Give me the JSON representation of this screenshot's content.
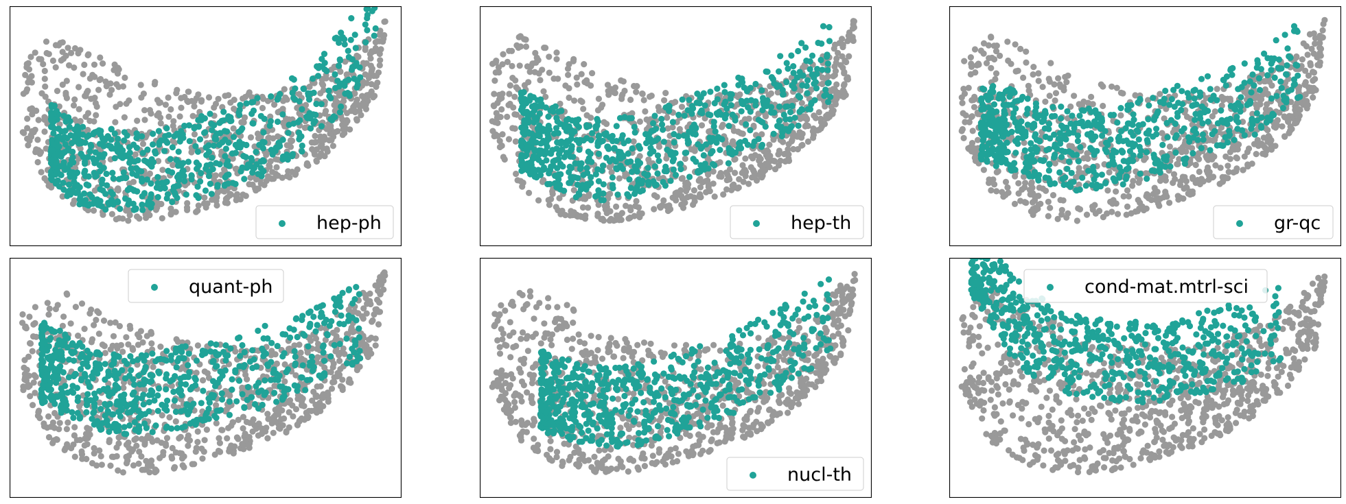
{
  "colors": {
    "background_points": "#999999",
    "highlight_points": "#20a398",
    "frame": "#000000",
    "legend_border": "#cccccc"
  },
  "chart_data": [
    {
      "type": "scatter",
      "title": "",
      "xlabel": "",
      "ylabel": "",
      "grid": false,
      "axes_ticks": false,
      "legend": {
        "entries": [
          "hep-ph"
        ],
        "placement": "lower-right"
      },
      "series": [
        {
          "name": "hep-ph",
          "color": "#20a398",
          "x": [
            -0.8,
            -0.7,
            -0.6,
            -0.5,
            -0.4,
            -0.3,
            -0.2,
            -0.1,
            0.0,
            0.1,
            0.2,
            0.3,
            0.4,
            0.5,
            0.6,
            0.7,
            0.8,
            0.88
          ],
          "y": [
            0.2,
            0.1,
            0.05,
            0.05,
            0.05,
            0.05,
            0.08,
            0.1,
            0.12,
            0.15,
            0.18,
            0.22,
            0.28,
            0.35,
            0.45,
            0.55,
            0.7,
            0.95
          ]
        }
      ]
    },
    {
      "type": "scatter",
      "title": "",
      "xlabel": "",
      "ylabel": "",
      "grid": false,
      "axes_ticks": false,
      "legend": {
        "entries": [
          "hep-th"
        ],
        "placement": "lower-right"
      },
      "series": [
        {
          "name": "hep-th",
          "color": "#20a398",
          "x": [
            -0.8,
            -0.7,
            -0.6,
            -0.5,
            -0.4,
            -0.3,
            -0.2,
            -0.1,
            0.0,
            0.2,
            0.4,
            0.6,
            0.8
          ],
          "y": [
            0.25,
            0.2,
            0.15,
            0.1,
            0.1,
            0.1,
            0.12,
            0.15,
            0.2,
            0.25,
            0.35,
            0.45,
            0.6
          ]
        }
      ]
    },
    {
      "type": "scatter",
      "title": "",
      "xlabel": "",
      "ylabel": "",
      "grid": false,
      "axes_ticks": false,
      "legend": {
        "entries": [
          "gr-qc"
        ],
        "placement": "lower-right"
      },
      "series": [
        {
          "name": "gr-qc",
          "color": "#20a398",
          "x": [
            -0.85,
            -0.7,
            -0.55,
            -0.4,
            -0.25,
            -0.1,
            0.05,
            0.2,
            0.4,
            0.6,
            0.8
          ],
          "y": [
            0.3,
            0.25,
            0.2,
            0.15,
            0.15,
            0.18,
            0.22,
            0.28,
            0.35,
            0.45,
            0.6
          ]
        }
      ]
    },
    {
      "type": "scatter",
      "title": "",
      "xlabel": "",
      "ylabel": "",
      "grid": false,
      "axes_ticks": false,
      "legend": {
        "entries": [
          "quant-ph"
        ],
        "placement": "upper-center"
      },
      "series": [
        {
          "name": "quant-ph",
          "color": "#20a398",
          "x": [
            -0.85,
            -0.75,
            -0.65,
            -0.55,
            -0.45,
            -0.35,
            -0.2,
            0.0,
            0.2,
            0.4,
            0.6,
            0.8
          ],
          "y": [
            0.35,
            0.3,
            0.25,
            0.2,
            0.18,
            0.18,
            0.2,
            0.25,
            0.3,
            0.35,
            0.45,
            0.55
          ]
        }
      ]
    },
    {
      "type": "scatter",
      "title": "",
      "xlabel": "",
      "ylabel": "",
      "grid": false,
      "axes_ticks": false,
      "legend": {
        "entries": [
          "nucl-th"
        ],
        "placement": "lower-right"
      },
      "series": [
        {
          "name": "nucl-th",
          "color": "#20a398",
          "x": [
            -0.7,
            -0.55,
            -0.4,
            -0.25,
            -0.1,
            0.05,
            0.2,
            0.4,
            0.6,
            0.8
          ],
          "y": [
            0.2,
            0.15,
            0.12,
            0.12,
            0.15,
            0.2,
            0.25,
            0.35,
            0.45,
            0.6
          ]
        }
      ]
    },
    {
      "type": "scatter",
      "title": "",
      "xlabel": "",
      "ylabel": "",
      "grid": false,
      "axes_ticks": false,
      "legend": {
        "entries": [
          "cond-mat.mtrl-sci"
        ],
        "placement": "upper-center"
      },
      "series": [
        {
          "name": "cond-mat.mtrl-sci",
          "color": "#20a398",
          "x": [
            -0.9,
            -0.8,
            -0.7,
            -0.6,
            -0.5,
            -0.4,
            -0.3,
            -0.1,
            0.1,
            0.3,
            0.5,
            0.7
          ],
          "y": [
            0.9,
            0.75,
            0.6,
            0.5,
            0.45,
            0.4,
            0.38,
            0.35,
            0.35,
            0.4,
            0.45,
            0.55
          ]
        }
      ]
    }
  ]
}
